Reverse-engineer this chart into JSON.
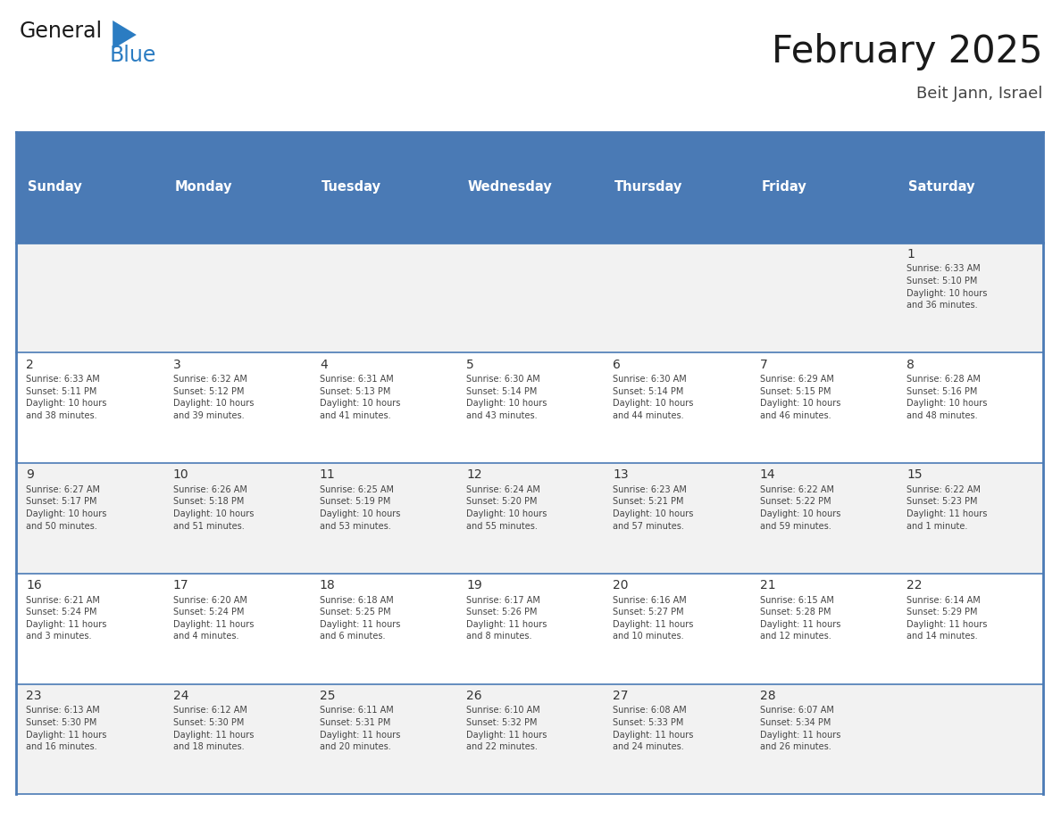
{
  "title": "February 2025",
  "subtitle": "Beit Jann, Israel",
  "days_of_week": [
    "Sunday",
    "Monday",
    "Tuesday",
    "Wednesday",
    "Thursday",
    "Friday",
    "Saturday"
  ],
  "header_bg_color": "#4a7ab5",
  "header_text_color": "#ffffff",
  "row_bg_odd": "#f2f2f2",
  "row_bg_even": "#ffffff",
  "cell_border_color": "#4a7ab5",
  "cell_border_color_light": "#bbbbbb",
  "title_color": "#1a1a1a",
  "subtitle_color": "#444444",
  "day_num_color": "#333333",
  "info_text_color": "#444444",
  "logo_general_color": "#1a1a1a",
  "logo_blue_color": "#2b7cc2",
  "calendar": [
    [
      {
        "day": null,
        "info": ""
      },
      {
        "day": null,
        "info": ""
      },
      {
        "day": null,
        "info": ""
      },
      {
        "day": null,
        "info": ""
      },
      {
        "day": null,
        "info": ""
      },
      {
        "day": null,
        "info": ""
      },
      {
        "day": 1,
        "info": "Sunrise: 6:33 AM\nSunset: 5:10 PM\nDaylight: 10 hours\nand 36 minutes."
      }
    ],
    [
      {
        "day": 2,
        "info": "Sunrise: 6:33 AM\nSunset: 5:11 PM\nDaylight: 10 hours\nand 38 minutes."
      },
      {
        "day": 3,
        "info": "Sunrise: 6:32 AM\nSunset: 5:12 PM\nDaylight: 10 hours\nand 39 minutes."
      },
      {
        "day": 4,
        "info": "Sunrise: 6:31 AM\nSunset: 5:13 PM\nDaylight: 10 hours\nand 41 minutes."
      },
      {
        "day": 5,
        "info": "Sunrise: 6:30 AM\nSunset: 5:14 PM\nDaylight: 10 hours\nand 43 minutes."
      },
      {
        "day": 6,
        "info": "Sunrise: 6:30 AM\nSunset: 5:14 PM\nDaylight: 10 hours\nand 44 minutes."
      },
      {
        "day": 7,
        "info": "Sunrise: 6:29 AM\nSunset: 5:15 PM\nDaylight: 10 hours\nand 46 minutes."
      },
      {
        "day": 8,
        "info": "Sunrise: 6:28 AM\nSunset: 5:16 PM\nDaylight: 10 hours\nand 48 minutes."
      }
    ],
    [
      {
        "day": 9,
        "info": "Sunrise: 6:27 AM\nSunset: 5:17 PM\nDaylight: 10 hours\nand 50 minutes."
      },
      {
        "day": 10,
        "info": "Sunrise: 6:26 AM\nSunset: 5:18 PM\nDaylight: 10 hours\nand 51 minutes."
      },
      {
        "day": 11,
        "info": "Sunrise: 6:25 AM\nSunset: 5:19 PM\nDaylight: 10 hours\nand 53 minutes."
      },
      {
        "day": 12,
        "info": "Sunrise: 6:24 AM\nSunset: 5:20 PM\nDaylight: 10 hours\nand 55 minutes."
      },
      {
        "day": 13,
        "info": "Sunrise: 6:23 AM\nSunset: 5:21 PM\nDaylight: 10 hours\nand 57 minutes."
      },
      {
        "day": 14,
        "info": "Sunrise: 6:22 AM\nSunset: 5:22 PM\nDaylight: 10 hours\nand 59 minutes."
      },
      {
        "day": 15,
        "info": "Sunrise: 6:22 AM\nSunset: 5:23 PM\nDaylight: 11 hours\nand 1 minute."
      }
    ],
    [
      {
        "day": 16,
        "info": "Sunrise: 6:21 AM\nSunset: 5:24 PM\nDaylight: 11 hours\nand 3 minutes."
      },
      {
        "day": 17,
        "info": "Sunrise: 6:20 AM\nSunset: 5:24 PM\nDaylight: 11 hours\nand 4 minutes."
      },
      {
        "day": 18,
        "info": "Sunrise: 6:18 AM\nSunset: 5:25 PM\nDaylight: 11 hours\nand 6 minutes."
      },
      {
        "day": 19,
        "info": "Sunrise: 6:17 AM\nSunset: 5:26 PM\nDaylight: 11 hours\nand 8 minutes."
      },
      {
        "day": 20,
        "info": "Sunrise: 6:16 AM\nSunset: 5:27 PM\nDaylight: 11 hours\nand 10 minutes."
      },
      {
        "day": 21,
        "info": "Sunrise: 6:15 AM\nSunset: 5:28 PM\nDaylight: 11 hours\nand 12 minutes."
      },
      {
        "day": 22,
        "info": "Sunrise: 6:14 AM\nSunset: 5:29 PM\nDaylight: 11 hours\nand 14 minutes."
      }
    ],
    [
      {
        "day": 23,
        "info": "Sunrise: 6:13 AM\nSunset: 5:30 PM\nDaylight: 11 hours\nand 16 minutes."
      },
      {
        "day": 24,
        "info": "Sunrise: 6:12 AM\nSunset: 5:30 PM\nDaylight: 11 hours\nand 18 minutes."
      },
      {
        "day": 25,
        "info": "Sunrise: 6:11 AM\nSunset: 5:31 PM\nDaylight: 11 hours\nand 20 minutes."
      },
      {
        "day": 26,
        "info": "Sunrise: 6:10 AM\nSunset: 5:32 PM\nDaylight: 11 hours\nand 22 minutes."
      },
      {
        "day": 27,
        "info": "Sunrise: 6:08 AM\nSunset: 5:33 PM\nDaylight: 11 hours\nand 24 minutes."
      },
      {
        "day": 28,
        "info": "Sunrise: 6:07 AM\nSunset: 5:34 PM\nDaylight: 11 hours\nand 26 minutes."
      },
      {
        "day": null,
        "info": ""
      }
    ]
  ],
  "figsize": [
    11.88,
    9.18
  ],
  "dpi": 100
}
